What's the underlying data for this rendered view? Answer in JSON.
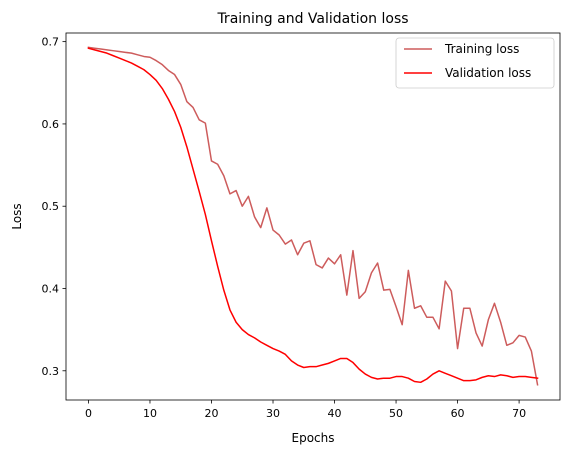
{
  "chart_data": {
    "type": "line",
    "title": "Training and Validation loss",
    "xlabel": "Epochs",
    "ylabel": "Loss",
    "xlim": [
      -3.65,
      76.65
    ],
    "ylim": [
      0.2645,
      0.7105
    ],
    "x_ticks": [
      0,
      10,
      20,
      30,
      40,
      50,
      60,
      70
    ],
    "y_ticks": [
      0.3,
      0.4,
      0.5,
      0.6,
      0.7
    ],
    "grid": false,
    "legend_position": "top-right",
    "series": [
      {
        "name": "Training loss",
        "color": "#cd5c5c",
        "x": [
          0,
          1,
          2,
          3,
          4,
          5,
          6,
          7,
          8,
          9,
          10,
          11,
          12,
          13,
          14,
          15,
          16,
          17,
          18,
          19,
          20,
          21,
          22,
          23,
          24,
          25,
          26,
          27,
          28,
          29,
          30,
          31,
          32,
          33,
          34,
          35,
          36,
          37,
          38,
          39,
          40,
          41,
          42,
          43,
          44,
          45,
          46,
          47,
          48,
          49,
          50,
          51,
          52,
          53,
          54,
          55,
          56,
          57,
          58,
          59,
          60,
          61,
          62,
          63,
          64,
          65,
          66,
          67,
          68,
          69,
          70,
          71,
          72,
          73
        ],
        "values": [
          0.693,
          0.692,
          0.691,
          0.69,
          0.689,
          0.688,
          0.687,
          0.686,
          0.684,
          0.682,
          0.681,
          0.677,
          0.672,
          0.665,
          0.66,
          0.648,
          0.627,
          0.62,
          0.605,
          0.601,
          0.555,
          0.551,
          0.537,
          0.515,
          0.519,
          0.5,
          0.512,
          0.487,
          0.474,
          0.498,
          0.471,
          0.465,
          0.454,
          0.459,
          0.441,
          0.455,
          0.458,
          0.429,
          0.425,
          0.437,
          0.43,
          0.441,
          0.392,
          0.446,
          0.388,
          0.396,
          0.419,
          0.431,
          0.398,
          0.399,
          0.378,
          0.356,
          0.422,
          0.376,
          0.379,
          0.365,
          0.365,
          0.351,
          0.409,
          0.397,
          0.327,
          0.376,
          0.376,
          0.346,
          0.33,
          0.362,
          0.382,
          0.359,
          0.331,
          0.334,
          0.343,
          0.341,
          0.324,
          0.283
        ]
      },
      {
        "name": "Validation loss",
        "color": "#ff0000",
        "x": [
          0,
          1,
          2,
          3,
          4,
          5,
          6,
          7,
          8,
          9,
          10,
          11,
          12,
          13,
          14,
          15,
          16,
          17,
          18,
          19,
          20,
          21,
          22,
          23,
          24,
          25,
          26,
          27,
          28,
          29,
          30,
          31,
          32,
          33,
          34,
          35,
          36,
          37,
          38,
          39,
          40,
          41,
          42,
          43,
          44,
          45,
          46,
          47,
          48,
          49,
          50,
          51,
          52,
          53,
          54,
          55,
          56,
          57,
          58,
          59,
          60,
          61,
          62,
          63,
          64,
          65,
          66,
          67,
          68,
          69,
          70,
          71,
          72,
          73
        ],
        "values": [
          0.692,
          0.69,
          0.688,
          0.686,
          0.683,
          0.68,
          0.677,
          0.674,
          0.67,
          0.666,
          0.66,
          0.653,
          0.643,
          0.63,
          0.615,
          0.596,
          0.572,
          0.545,
          0.518,
          0.49,
          0.458,
          0.427,
          0.398,
          0.374,
          0.359,
          0.35,
          0.344,
          0.34,
          0.335,
          0.331,
          0.327,
          0.324,
          0.32,
          0.312,
          0.307,
          0.304,
          0.305,
          0.305,
          0.307,
          0.309,
          0.312,
          0.315,
          0.315,
          0.31,
          0.302,
          0.296,
          0.292,
          0.29,
          0.291,
          0.291,
          0.293,
          0.293,
          0.291,
          0.287,
          0.286,
          0.29,
          0.296,
          0.3,
          0.297,
          0.294,
          0.291,
          0.288,
          0.288,
          0.289,
          0.292,
          0.294,
          0.293,
          0.295,
          0.294,
          0.292,
          0.293,
          0.293,
          0.292,
          0.291
        ]
      }
    ]
  }
}
